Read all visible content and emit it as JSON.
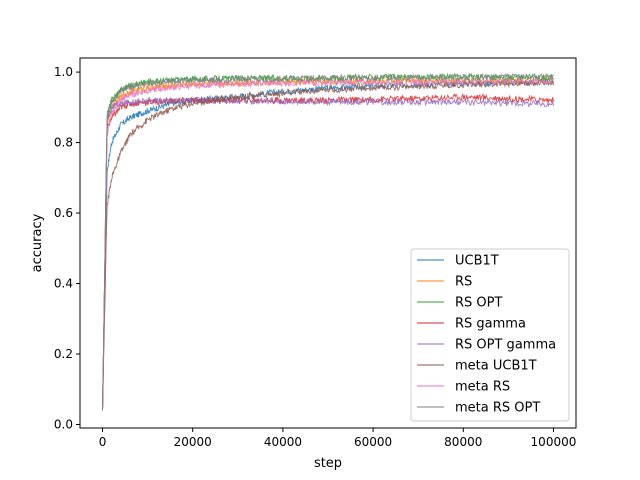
{
  "chart_data": {
    "type": "line",
    "title": "",
    "xlabel": "step",
    "ylabel": "accuracy",
    "xlim": [
      -5000,
      105000
    ],
    "ylim": [
      -0.01,
      1.04
    ],
    "xticks": [
      0,
      20000,
      40000,
      60000,
      80000,
      100000
    ],
    "xtick_labels": [
      "0",
      "20000",
      "40000",
      "60000",
      "80000",
      "100000"
    ],
    "yticks": [
      0.0,
      0.2,
      0.4,
      0.6,
      0.8,
      1.0
    ],
    "ytick_labels": [
      "0.0",
      "0.2",
      "0.4",
      "0.6",
      "0.8",
      "1.0"
    ],
    "grid": false,
    "legend_position": "lower-right",
    "series": [
      {
        "name": "UCB1T",
        "color": "#1f77b4",
        "x": [
          0,
          1000,
          2000,
          4000,
          6000,
          10000,
          15000,
          20000,
          30000,
          40000,
          50000,
          60000,
          70000,
          80000,
          90000,
          100000
        ],
        "y": [
          0.04,
          0.72,
          0.8,
          0.85,
          0.87,
          0.89,
          0.91,
          0.92,
          0.93,
          0.945,
          0.955,
          0.96,
          0.965,
          0.968,
          0.97,
          0.972
        ]
      },
      {
        "name": "RS",
        "color": "#ff7f0e",
        "x": [
          0,
          1000,
          2000,
          4000,
          6000,
          10000,
          15000,
          20000,
          30000,
          40000,
          50000,
          60000,
          70000,
          80000,
          90000,
          100000
        ],
        "y": [
          0.04,
          0.85,
          0.9,
          0.93,
          0.945,
          0.955,
          0.962,
          0.966,
          0.97,
          0.972,
          0.973,
          0.974,
          0.975,
          0.975,
          0.976,
          0.976
        ]
      },
      {
        "name": "RS OPT",
        "color": "#2ca02c",
        "x": [
          0,
          1000,
          2000,
          4000,
          6000,
          10000,
          15000,
          20000,
          30000,
          40000,
          50000,
          60000,
          70000,
          80000,
          90000,
          100000
        ],
        "y": [
          0.04,
          0.88,
          0.92,
          0.95,
          0.962,
          0.972,
          0.977,
          0.98,
          0.982,
          0.983,
          0.984,
          0.985,
          0.985,
          0.986,
          0.986,
          0.986
        ]
      },
      {
        "name": "RS gamma",
        "color": "#d62728",
        "x": [
          0,
          1000,
          2000,
          4000,
          6000,
          10000,
          15000,
          20000,
          30000,
          40000,
          50000,
          60000,
          70000,
          80000,
          90000,
          100000
        ],
        "y": [
          0.04,
          0.84,
          0.87,
          0.9,
          0.91,
          0.915,
          0.918,
          0.92,
          0.92,
          0.92,
          0.92,
          0.922,
          0.925,
          0.93,
          0.925,
          0.92
        ]
      },
      {
        "name": "RS OPT gamma",
        "color": "#9467bd",
        "x": [
          0,
          1000,
          2000,
          4000,
          6000,
          10000,
          15000,
          20000,
          30000,
          40000,
          50000,
          60000,
          70000,
          80000,
          90000,
          100000
        ],
        "y": [
          0.04,
          0.86,
          0.9,
          0.91,
          0.915,
          0.918,
          0.92,
          0.92,
          0.918,
          0.917,
          0.916,
          0.916,
          0.915,
          0.915,
          0.912,
          0.91
        ]
      },
      {
        "name": "meta UCB1T",
        "color": "#8c564b",
        "x": [
          0,
          1000,
          2000,
          4000,
          6000,
          10000,
          15000,
          20000,
          30000,
          40000,
          50000,
          60000,
          70000,
          80000,
          90000,
          100000
        ],
        "y": [
          0.04,
          0.62,
          0.7,
          0.77,
          0.82,
          0.865,
          0.895,
          0.912,
          0.93,
          0.94,
          0.95,
          0.955,
          0.96,
          0.965,
          0.968,
          0.97
        ]
      },
      {
        "name": "meta RS",
        "color": "#e377c2",
        "x": [
          0,
          1000,
          2000,
          4000,
          6000,
          10000,
          15000,
          20000,
          30000,
          40000,
          50000,
          60000,
          70000,
          80000,
          90000,
          100000
        ],
        "y": [
          0.04,
          0.82,
          0.88,
          0.92,
          0.935,
          0.948,
          0.956,
          0.962,
          0.967,
          0.969,
          0.97,
          0.971,
          0.972,
          0.972,
          0.973,
          0.973
        ]
      },
      {
        "name": "meta RS OPT",
        "color": "#7f7f7f",
        "x": [
          0,
          1000,
          2000,
          4000,
          6000,
          10000,
          15000,
          20000,
          30000,
          40000,
          50000,
          60000,
          70000,
          80000,
          90000,
          100000
        ],
        "y": [
          0.04,
          0.87,
          0.915,
          0.945,
          0.958,
          0.968,
          0.974,
          0.977,
          0.98,
          0.982,
          0.983,
          0.984,
          0.985,
          0.985,
          0.986,
          0.986
        ]
      }
    ]
  }
}
